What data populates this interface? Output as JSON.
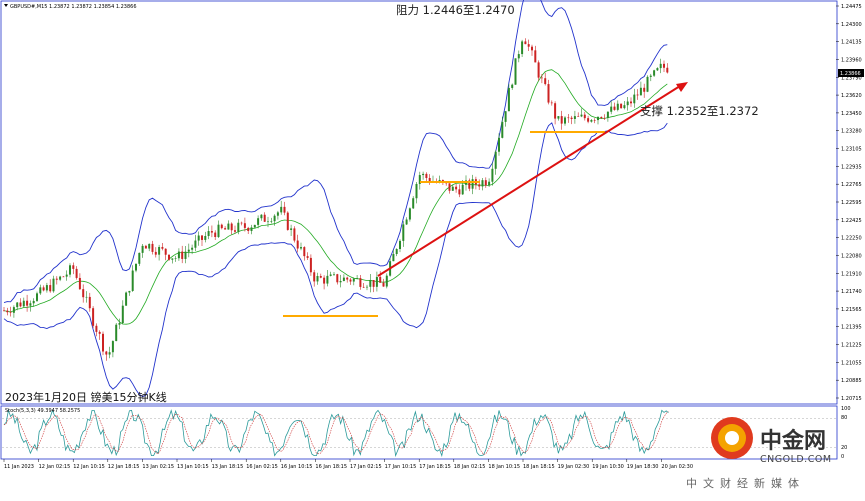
{
  "header": {
    "symbol_text": "GBPUSD#,M15  1.23872 1.23872 1.23854 1.23866"
  },
  "price_axis": {
    "labels": [
      "1.24475",
      "1.24300",
      "1.24135",
      "1.23960",
      "1.23790",
      "1.23620",
      "1.23450",
      "1.23280",
      "1.23105",
      "1.22935",
      "1.22765",
      "1.22595",
      "1.22425",
      "1.22250",
      "1.22080",
      "1.21910",
      "1.21740",
      "1.21565",
      "1.21395",
      "1.21225",
      "1.21055",
      "1.20885",
      "1.20715"
    ],
    "current_price": "1.23866"
  },
  "time_axis": {
    "labels": [
      "11 Jan 2023",
      "12 Jan 02:15",
      "12 Jan 10:15",
      "12 Jan 18:15",
      "13 Jan 02:15",
      "13 Jan 10:15",
      "13 Jan 18:15",
      "16 Jan 02:15",
      "16 Jan 10:15",
      "16 Jan 18:15",
      "17 Jan 02:15",
      "17 Jan 10:15",
      "17 Jan 18:15",
      "18 Jan 02:15",
      "18 Jan 10:15",
      "18 Jan 18:15",
      "19 Jan 02:30",
      "19 Jan 10:30",
      "19 Jan 18:30",
      "20 Jan 02:30"
    ]
  },
  "annotations": {
    "resistance": "阻力 1.2446至1.2470",
    "support": "支撑 1.2352至1.2372",
    "caption": "2023年1月20日 镑美15分钟K线"
  },
  "stoch_panel": {
    "label": "Stoch(5,3,3) 49.3947 58.2575",
    "levels": [
      "100",
      "80",
      "20",
      "0"
    ]
  },
  "logo": {
    "cn": "中金网",
    "en": "CNGOLD.COM",
    "tagline": "中文财经新媒体"
  },
  "colors": {
    "bull": "#2a8a2a",
    "bear": "#cc2222",
    "band": "#2233cc",
    "middle": "#22aa22",
    "support_line": "#ffaa00",
    "trend": "#dd1111",
    "stoch_main": "#2b9a9a",
    "stoch_signal": "#cc3333"
  },
  "chart_data": {
    "type": "candlestick",
    "symbol": "GBPUSD#",
    "timeframe": "M15",
    "ylim": [
      1.20715,
      1.24475
    ],
    "price_path": [
      [
        "11 Jan 2023",
        1.2155
      ],
      [
        "12 Jan 02:15",
        1.217
      ],
      [
        "12 Jan 10:15",
        1.2195
      ],
      [
        "12 Jan 18:15",
        1.211
      ],
      [
        "13 Jan 02:15",
        1.222
      ],
      [
        "13 Jan 10:15",
        1.2205
      ],
      [
        "13 Jan 18:15",
        1.223
      ],
      [
        "16 Jan 02:15",
        1.2235
      ],
      [
        "16 Jan 10:15",
        1.225
      ],
      [
        "16 Jan 18:15",
        1.2185
      ],
      [
        "17 Jan 02:15",
        1.2185
      ],
      [
        "17 Jan 10:15",
        1.218
      ],
      [
        "17 Jan 18:15",
        1.2285
      ],
      [
        "18 Jan 02:15",
        1.227
      ],
      [
        "18 Jan 10:15",
        1.228
      ],
      [
        "18 Jan 18:15",
        1.242
      ],
      [
        "19 Jan 02:30",
        1.2335
      ],
      [
        "19 Jan 10:30",
        1.234
      ],
      [
        "19 Jan 18:30",
        1.235
      ],
      [
        "20 Jan 02:30",
        1.2387
      ]
    ],
    "levels": {
      "resistance": [
        1.2446,
        1.247
      ],
      "support": [
        1.2352,
        1.2372
      ]
    },
    "stochastic": {
      "k": 49.3947,
      "d": 58.2575,
      "params": [
        5,
        3,
        3
      ]
    }
  }
}
